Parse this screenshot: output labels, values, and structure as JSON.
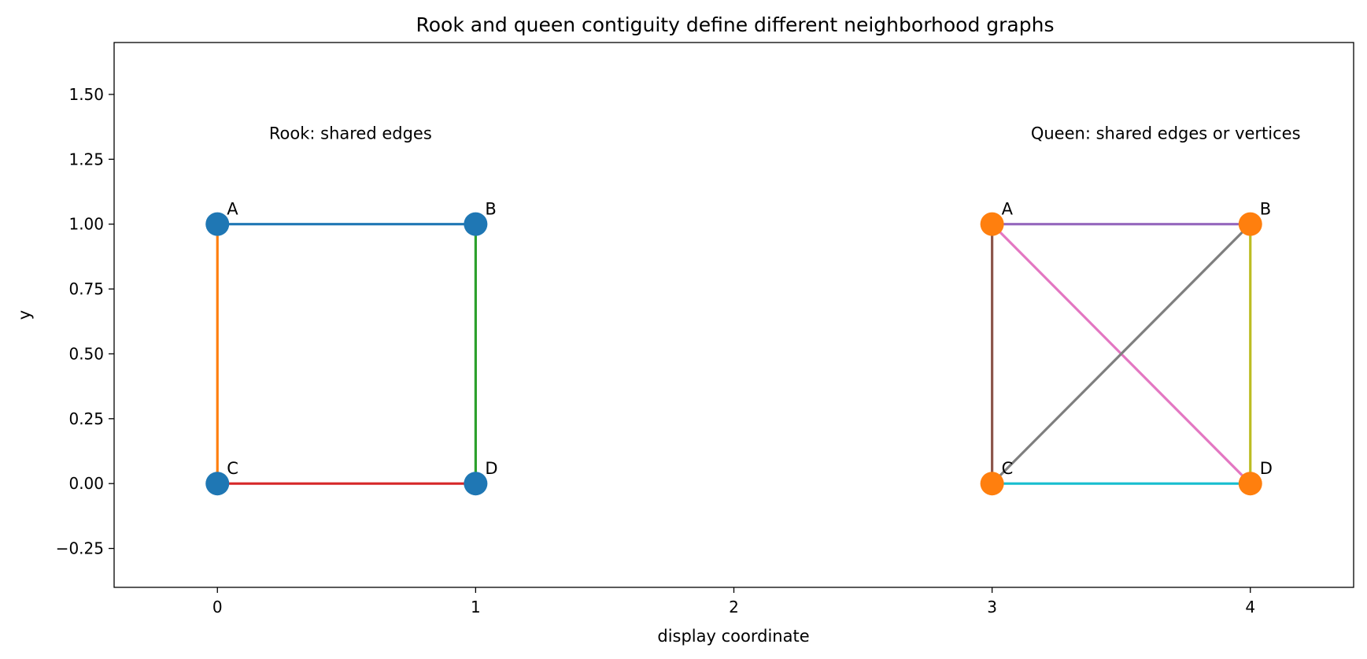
{
  "chart_data": {
    "type": "scatter",
    "title": "Rook and queen contiguity define different neighborhood graphs",
    "xlabel": "display coordinate",
    "ylabel": "y",
    "xlim": [
      -0.4,
      4.4
    ],
    "ylim": [
      -0.4,
      1.7
    ],
    "xticks": [
      0,
      1,
      2,
      3,
      4
    ],
    "xtick_labels": [
      "0",
      "1",
      "2",
      "3",
      "4"
    ],
    "yticks": [
      -0.25,
      0,
      0.25,
      0.5,
      0.75,
      1.0,
      1.25,
      1.5
    ],
    "ytick_labels": [
      "−0.25",
      "0.00",
      "0.25",
      "0.50",
      "0.75",
      "1.00",
      "1.25",
      "1.50"
    ],
    "grid": false,
    "annotations": [
      {
        "text": "Rook: shared edges",
        "x": 0.2,
        "y": 1.35
      },
      {
        "text": "Queen: shared edges or vertices",
        "x": 3.15,
        "y": 1.35
      }
    ],
    "groups": [
      {
        "marker_color": "#1f77b4",
        "nodes": [
          {
            "label": "A",
            "x": 0,
            "y": 1
          },
          {
            "label": "B",
            "x": 1,
            "y": 1
          },
          {
            "label": "C",
            "x": 0,
            "y": 0
          },
          {
            "label": "D",
            "x": 1,
            "y": 0
          }
        ],
        "edges": [
          {
            "from": "A",
            "to": "B",
            "color": "#1f77b4"
          },
          {
            "from": "A",
            "to": "C",
            "color": "#ff7f0e"
          },
          {
            "from": "B",
            "to": "D",
            "color": "#2ca02c"
          },
          {
            "from": "C",
            "to": "D",
            "color": "#d62728"
          }
        ]
      },
      {
        "marker_color": "#ff7f0e",
        "nodes": [
          {
            "label": "A",
            "x": 3,
            "y": 1
          },
          {
            "label": "B",
            "x": 4,
            "y": 1
          },
          {
            "label": "C",
            "x": 3,
            "y": 0
          },
          {
            "label": "D",
            "x": 4,
            "y": 0
          }
        ],
        "edges": [
          {
            "from": "A",
            "to": "B",
            "color": "#9467bd"
          },
          {
            "from": "A",
            "to": "C",
            "color": "#8c564b"
          },
          {
            "from": "A",
            "to": "D",
            "color": "#e377c2"
          },
          {
            "from": "B",
            "to": "C",
            "color": "#7f7f7f"
          },
          {
            "from": "B",
            "to": "D",
            "color": "#bcbd22"
          },
          {
            "from": "C",
            "to": "D",
            "color": "#17becf"
          }
        ]
      }
    ]
  }
}
